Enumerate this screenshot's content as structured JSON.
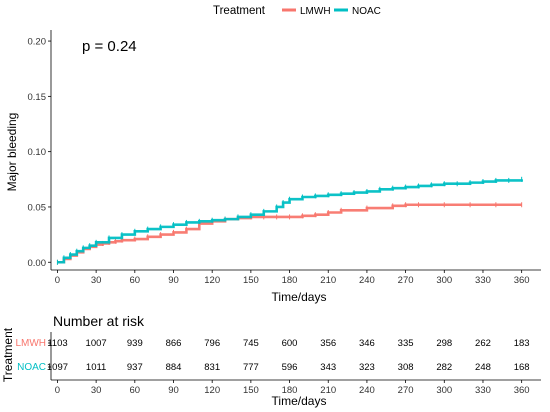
{
  "legend": {
    "title": "Treatment",
    "items": [
      {
        "label": "LMWH",
        "color": "#F8766D"
      },
      {
        "label": "NOAC",
        "color": "#00BFC4"
      }
    ]
  },
  "annotation": "p = 0.24",
  "risk_table": {
    "title": "Number at risk",
    "ylabel": "Treatment",
    "times": [
      0,
      30,
      60,
      90,
      120,
      150,
      180,
      210,
      240,
      270,
      300,
      330,
      360
    ],
    "rows": [
      {
        "label": "LMWH",
        "color": "#F8766D",
        "counts": [
          "1103",
          "1007",
          "939",
          "866",
          "796",
          "745",
          "600",
          "356",
          "346",
          "335",
          "298",
          "262",
          "183"
        ]
      },
      {
        "label": "NOAC",
        "color": "#00BFC4",
        "counts": [
          "1097",
          "1011",
          "937",
          "884",
          "831",
          "777",
          "596",
          "343",
          "323",
          "308",
          "282",
          "248",
          "168"
        ]
      }
    ],
    "xlabel": "Time/days",
    "xticks": [
      "0",
      "30",
      "60",
      "90",
      "120",
      "150",
      "180",
      "210",
      "240",
      "270",
      "300",
      "330",
      "360"
    ]
  },
  "chart_data": {
    "type": "line",
    "title": "",
    "xlabel": "Time/days",
    "ylabel": "Major bleeding",
    "xlim": [
      -5,
      375
    ],
    "ylim": [
      -0.007,
      0.21
    ],
    "xticks": [
      0,
      30,
      60,
      90,
      120,
      150,
      180,
      210,
      240,
      270,
      300,
      330,
      360
    ],
    "yticks": [
      0.0,
      0.05,
      0.1,
      0.15,
      0.2
    ],
    "ytick_labels": [
      "0.00",
      "0.05",
      "0.10",
      "0.15",
      "0.20"
    ],
    "grid": false,
    "legend_position": "top",
    "series": [
      {
        "name": "LMWH",
        "color": "#F8766D",
        "x": [
          0,
          5,
          10,
          15,
          20,
          25,
          30,
          35,
          40,
          45,
          50,
          60,
          70,
          80,
          90,
          100,
          110,
          120,
          130,
          140,
          150,
          160,
          170,
          180,
          190,
          200,
          210,
          220,
          240,
          260,
          270,
          280,
          300,
          320,
          340,
          360
        ],
        "y": [
          0.0,
          0.003,
          0.006,
          0.009,
          0.012,
          0.014,
          0.016,
          0.017,
          0.018,
          0.019,
          0.02,
          0.021,
          0.023,
          0.025,
          0.027,
          0.03,
          0.035,
          0.037,
          0.039,
          0.04,
          0.041,
          0.041,
          0.041,
          0.041,
          0.042,
          0.043,
          0.045,
          0.047,
          0.049,
          0.051,
          0.052,
          0.052,
          0.052,
          0.052,
          0.052,
          0.052
        ]
      },
      {
        "name": "NOAC",
        "color": "#00BFC4",
        "x": [
          0,
          5,
          10,
          15,
          20,
          25,
          30,
          40,
          50,
          60,
          70,
          80,
          90,
          100,
          110,
          120,
          130,
          140,
          150,
          160,
          170,
          175,
          180,
          190,
          200,
          210,
          220,
          230,
          240,
          250,
          260,
          270,
          280,
          290,
          300,
          310,
          320,
          330,
          340,
          350,
          360
        ],
        "y": [
          0.0,
          0.004,
          0.007,
          0.01,
          0.013,
          0.015,
          0.018,
          0.022,
          0.025,
          0.028,
          0.03,
          0.032,
          0.034,
          0.036,
          0.037,
          0.038,
          0.039,
          0.041,
          0.043,
          0.046,
          0.05,
          0.054,
          0.057,
          0.059,
          0.06,
          0.061,
          0.062,
          0.063,
          0.064,
          0.066,
          0.067,
          0.068,
          0.069,
          0.07,
          0.071,
          0.071,
          0.072,
          0.073,
          0.074,
          0.074,
          0.075
        ]
      }
    ]
  }
}
